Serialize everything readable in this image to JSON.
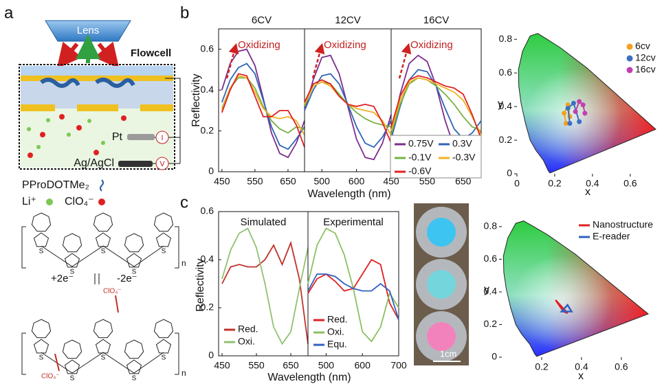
{
  "panel_labels": [
    "a",
    "b",
    "c"
  ],
  "diagram": {
    "lens": "Lens",
    "flowcell": "Flowcell",
    "pt": "Pt",
    "reference": "Ag/AgCl",
    "current": "I",
    "voltage": "V",
    "polymer": "PProDOTMe₂",
    "cation": "Li⁺",
    "anion": "ClO₄⁻",
    "reduction": "+2e⁻",
    "oxidation": "-2e⁻",
    "repeat": "n",
    "sulfur": "S"
  },
  "photo": {
    "scale_bar": "1cm"
  },
  "chart_data": [
    {
      "type": "line",
      "title": "6CV",
      "ylabel": "Reflectivity",
      "annotation": "Oxidizing",
      "x": [
        450,
        475,
        500,
        525,
        550,
        575,
        600,
        625,
        650,
        675,
        700
      ],
      "xlim": [
        440,
        700
      ],
      "xticks": [
        450,
        550,
        650
      ],
      "ylim": [
        0,
        0.7
      ],
      "yticks": [
        0,
        0.2,
        0.4,
        0.6
      ],
      "series": [
        {
          "color": "#7b2d8e",
          "values": [
            0.4,
            0.53,
            0.59,
            0.6,
            0.52,
            0.36,
            0.19,
            0.09,
            0.07,
            0.14,
            0.25
          ]
        },
        {
          "color": "#2f64b5",
          "values": [
            0.34,
            0.45,
            0.51,
            0.53,
            0.48,
            0.35,
            0.22,
            0.13,
            0.11,
            0.16,
            0.22
          ]
        },
        {
          "color": "#77b043",
          "values": [
            0.31,
            0.41,
            0.46,
            0.46,
            0.41,
            0.32,
            0.25,
            0.21,
            0.19,
            0.22,
            0.21
          ]
        },
        {
          "color": "#f0b020",
          "values": [
            0.3,
            0.41,
            0.47,
            0.46,
            0.39,
            0.31,
            0.27,
            0.26,
            0.27,
            0.25,
            0.18
          ]
        },
        {
          "color": "#e02020",
          "values": [
            0.29,
            0.4,
            0.48,
            0.47,
            0.37,
            0.27,
            0.27,
            0.3,
            0.3,
            0.23,
            0.12
          ]
        }
      ]
    },
    {
      "type": "line",
      "title": "12CV",
      "xlabel": "Wavelength (nm)",
      "annotation": "Oxidizing",
      "x": [
        450,
        475,
        500,
        525,
        550,
        575,
        600,
        625,
        650,
        675,
        700
      ],
      "xlim": [
        450,
        700
      ],
      "xticks": [
        500,
        600
      ],
      "ylim": [
        0,
        0.7
      ],
      "series": [
        {
          "color": "#7b2d8e",
          "values": [
            0.3,
            0.45,
            0.56,
            0.57,
            0.48,
            0.32,
            0.16,
            0.07,
            0.06,
            0.14,
            0.28
          ]
        },
        {
          "color": "#2f64b5",
          "values": [
            0.3,
            0.4,
            0.47,
            0.48,
            0.43,
            0.33,
            0.22,
            0.14,
            0.12,
            0.17,
            0.25
          ]
        },
        {
          "color": "#77b043",
          "values": [
            0.32,
            0.42,
            0.44,
            0.43,
            0.38,
            0.33,
            0.29,
            0.26,
            0.24,
            0.23,
            0.22
          ]
        },
        {
          "color": "#f0b020",
          "values": [
            0.33,
            0.42,
            0.44,
            0.42,
            0.37,
            0.33,
            0.31,
            0.3,
            0.29,
            0.25,
            0.18
          ]
        },
        {
          "color": "#e02020",
          "values": [
            0.34,
            0.43,
            0.45,
            0.43,
            0.37,
            0.33,
            0.32,
            0.33,
            0.32,
            0.24,
            0.14
          ]
        }
      ]
    },
    {
      "type": "line",
      "title": "16CV",
      "annotation": "Oxidizing",
      "x": [
        450,
        475,
        500,
        525,
        550,
        575,
        600,
        625,
        650,
        675,
        700
      ],
      "xlim": [
        450,
        700
      ],
      "xticks": [
        450,
        550,
        650
      ],
      "ylim": [
        0,
        0.7
      ],
      "series": [
        {
          "name": "0.75V",
          "color": "#7b2d8e",
          "values": [
            0.18,
            0.38,
            0.53,
            0.57,
            0.54,
            0.42,
            0.25,
            0.12,
            0.07,
            0.1,
            0.2
          ]
        },
        {
          "name": "0.3V",
          "color": "#2f64b5",
          "values": [
            0.16,
            0.32,
            0.45,
            0.5,
            0.49,
            0.42,
            0.31,
            0.21,
            0.16,
            0.19,
            0.25
          ]
        },
        {
          "name": "-0.1V",
          "color": "#77b043",
          "values": [
            0.18,
            0.33,
            0.43,
            0.46,
            0.45,
            0.42,
            0.38,
            0.33,
            0.27,
            0.22,
            0.2
          ]
        },
        {
          "name": "-0.3V",
          "color": "#f0b020",
          "values": [
            0.2,
            0.35,
            0.44,
            0.46,
            0.45,
            0.43,
            0.41,
            0.39,
            0.35,
            0.27,
            0.18
          ]
        },
        {
          "name": "-0.6V",
          "color": "#e02020",
          "values": [
            0.22,
            0.37,
            0.45,
            0.47,
            0.46,
            0.44,
            0.42,
            0.41,
            0.38,
            0.28,
            0.16
          ]
        }
      ]
    },
    {
      "type": "scatter",
      "xlabel": "x",
      "ylabel": "y",
      "xlim": [
        0,
        0.75
      ],
      "xticks": [
        0,
        0.2,
        0.4,
        0.6
      ],
      "ylim": [
        0,
        0.85
      ],
      "yticks": [
        0,
        0.2,
        0.4,
        0.6,
        0.8
      ],
      "series": [
        {
          "name": "6cv",
          "color": "#f4a020",
          "x": [
            0.26,
            0.25,
            0.27,
            0.28
          ],
          "values": [
            0.3,
            0.36,
            0.41,
            0.34
          ]
        },
        {
          "name": "12cv",
          "color": "#3a6fc4",
          "x": [
            0.28,
            0.27,
            0.3,
            0.33
          ],
          "values": [
            0.3,
            0.39,
            0.42,
            0.31
          ]
        },
        {
          "name": "16cv",
          "color": "#c040b0",
          "x": [
            0.31,
            0.33,
            0.35,
            0.36
          ],
          "values": [
            0.37,
            0.43,
            0.41,
            0.36
          ]
        }
      ]
    },
    {
      "type": "line",
      "title": "Simulated",
      "ylabel": "Reflectivity",
      "x": [
        450,
        475,
        500,
        525,
        550,
        575,
        600,
        625,
        650,
        675,
        700
      ],
      "xlim": [
        440,
        700
      ],
      "xticks": [
        450,
        550,
        650
      ],
      "ylim": [
        0,
        0.6
      ],
      "yticks": [
        0,
        0.2,
        0.4,
        0.6
      ],
      "series": [
        {
          "name": "Red.",
          "color": "#c0302a",
          "values": [
            0.3,
            0.37,
            0.38,
            0.37,
            0.37,
            0.4,
            0.46,
            0.38,
            0.47,
            0.32,
            0.05
          ]
        },
        {
          "name": "Oxi.",
          "color": "#90c070",
          "values": [
            0.32,
            0.44,
            0.51,
            0.53,
            0.45,
            0.3,
            0.12,
            0.05,
            0.1,
            0.28,
            0.45
          ]
        }
      ]
    },
    {
      "type": "line",
      "title": "Experimental",
      "xlabel": "Wavelength (nm)",
      "x": [
        450,
        475,
        500,
        525,
        550,
        575,
        600,
        625,
        650,
        675,
        700
      ],
      "xlim": [
        450,
        700
      ],
      "xticks": [
        500,
        600,
        700
      ],
      "ylim": [
        0,
        0.6
      ],
      "series": [
        {
          "name": "Red.",
          "color": "#e02020",
          "values": [
            0.26,
            0.32,
            0.34,
            0.31,
            0.27,
            0.28,
            0.34,
            0.4,
            0.38,
            0.22,
            0.15
          ]
        },
        {
          "name": "Oxi.",
          "color": "#8ac060",
          "values": [
            0.3,
            0.46,
            0.53,
            0.51,
            0.42,
            0.28,
            0.1,
            0.06,
            0.12,
            0.26,
            0.2
          ]
        },
        {
          "name": "Equ.",
          "color": "#3060c0",
          "values": [
            0.27,
            0.34,
            0.34,
            0.33,
            0.3,
            0.28,
            0.27,
            0.27,
            0.3,
            0.27,
            0.15
          ]
        }
      ]
    },
    {
      "type": "polygon",
      "xlabel": "x",
      "ylabel": "y",
      "xlim": [
        0,
        0.78
      ],
      "xticks": [
        0.2,
        0.4,
        0.6
      ],
      "ylim": [
        0,
        0.85
      ],
      "yticks": [
        0,
        0.2,
        0.4,
        0.6,
        0.8
      ],
      "series": [
        {
          "name": "Nanostructure",
          "color": "#e02020",
          "x": [
            0.27,
            0.31,
            0.33
          ],
          "values": [
            0.35,
            0.28,
            0.27
          ]
        },
        {
          "name": "E-reader",
          "color": "#3060c0",
          "x": [
            0.3,
            0.35,
            0.33
          ],
          "values": [
            0.28,
            0.28,
            0.32
          ]
        }
      ]
    }
  ]
}
